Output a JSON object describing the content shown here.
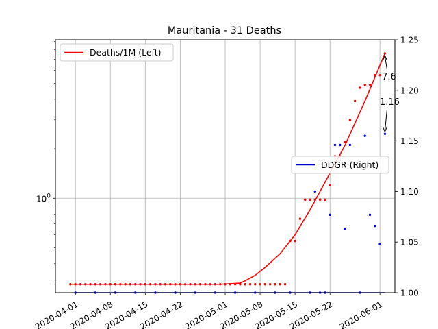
{
  "chart_data": {
    "type": "scatter",
    "title": "Mauritania - 31 Deaths",
    "x_tick_labels": [
      "2020-04-01",
      "2020-04-08",
      "2020-04-15",
      "2020-04-22",
      "2020-05-01",
      "2020-05-08",
      "2020-05-15",
      "2020-05-22",
      "2020-06-01"
    ],
    "x_ticks": [
      "2020-04-01",
      "2020-04-08",
      "2020-04-15",
      "2020-04-22",
      "2020-05-01",
      "2020-05-08",
      "2020-05-15",
      "2020-05-22",
      "2020-06-01"
    ],
    "xlim": [
      "2020-03-28",
      "2020-06-04"
    ],
    "left_axis": {
      "scale": "log",
      "ylim": [
        0.2667,
        9.2
      ],
      "tick_labels": [
        "10^0"
      ],
      "ticks": [
        1
      ]
    },
    "right_axis": {
      "scale": "linear",
      "ylim": [
        1.0,
        1.25
      ],
      "tick_labels": [
        "1.00",
        "1.05",
        "1.10",
        "1.15",
        "1.20",
        "1.25"
      ],
      "ticks": [
        1.0,
        1.05,
        1.1,
        1.15,
        1.2,
        1.25
      ]
    },
    "grid": true,
    "series": [
      {
        "name": "Deaths/1M (Left)",
        "axis": "left",
        "style": "line",
        "color": "#ff0000",
        "x": [
          "2020-03-31",
          "2020-04-30",
          "2020-05-04",
          "2020-05-05",
          "2020-05-07",
          "2020-05-09",
          "2020-05-12",
          "2020-05-15",
          "2020-05-18",
          "2020-05-21",
          "2020-05-25",
          "2020-05-29",
          "2020-06-02"
        ],
        "y": [
          0.3,
          0.3,
          0.305,
          0.315,
          0.34,
          0.38,
          0.46,
          0.6,
          0.85,
          1.25,
          2.1,
          3.9,
          7.6
        ]
      },
      {
        "name": "Deaths/1M points",
        "axis": "left",
        "style": "points",
        "color": "#ff0000",
        "x": [
          "2020-03-31",
          "2020-04-01",
          "2020-04-02",
          "2020-04-03",
          "2020-04-04",
          "2020-04-05",
          "2020-04-06",
          "2020-04-07",
          "2020-04-08",
          "2020-04-09",
          "2020-04-10",
          "2020-04-11",
          "2020-04-12",
          "2020-04-13",
          "2020-04-14",
          "2020-04-15",
          "2020-04-16",
          "2020-04-17",
          "2020-04-18",
          "2020-04-19",
          "2020-04-20",
          "2020-04-21",
          "2020-04-22",
          "2020-04-23",
          "2020-04-24",
          "2020-04-25",
          "2020-04-26",
          "2020-04-27",
          "2020-04-28",
          "2020-04-29",
          "2020-04-30",
          "2020-05-01",
          "2020-05-02",
          "2020-05-03",
          "2020-05-04",
          "2020-05-05",
          "2020-05-06",
          "2020-05-07",
          "2020-05-08",
          "2020-05-09",
          "2020-05-10",
          "2020-05-11",
          "2020-05-12",
          "2020-05-13",
          "2020-05-14",
          "2020-05-15",
          "2020-05-16",
          "2020-05-17",
          "2020-05-18",
          "2020-05-19",
          "2020-05-20",
          "2020-05-21",
          "2020-05-22",
          "2020-05-23",
          "2020-05-24",
          "2020-05-25",
          "2020-05-26",
          "2020-05-27",
          "2020-05-28",
          "2020-05-29",
          "2020-05-30",
          "2020-05-31",
          "2020-06-01",
          "2020-06-02"
        ],
        "y": [
          0.3,
          0.3,
          0.3,
          0.3,
          0.3,
          0.3,
          0.3,
          0.3,
          0.3,
          0.3,
          0.3,
          0.3,
          0.3,
          0.3,
          0.3,
          0.3,
          0.3,
          0.3,
          0.3,
          0.3,
          0.3,
          0.3,
          0.3,
          0.3,
          0.3,
          0.3,
          0.3,
          0.3,
          0.3,
          0.3,
          0.3,
          0.3,
          0.3,
          0.3,
          0.3,
          0.3,
          0.3,
          0.3,
          0.3,
          0.3,
          0.3,
          0.3,
          0.3,
          0.3,
          0.55,
          0.55,
          0.75,
          0.98,
          0.98,
          0.98,
          0.98,
          0.98,
          1.2,
          1.8,
          1.8,
          2.2,
          3.0,
          3.9,
          4.7,
          4.9,
          4.9,
          5.6,
          5.6,
          7.6
        ]
      },
      {
        "name": "DDGR (Right)",
        "axis": "right",
        "style": "line",
        "color": "#0000cc",
        "x": [
          "2020-04-01",
          "2020-06-02"
        ],
        "y": [
          1.0,
          1.0
        ]
      },
      {
        "name": "DDGR points",
        "axis": "right",
        "style": "points",
        "color": "#0000ff",
        "x": [
          "2020-04-01",
          "2020-04-05",
          "2020-04-09",
          "2020-04-13",
          "2020-04-17",
          "2020-04-21",
          "2020-04-25",
          "2020-04-29",
          "2020-05-03",
          "2020-05-07",
          "2020-05-11",
          "2020-05-14",
          "2020-05-18",
          "2020-05-19",
          "2020-05-20",
          "2020-05-21",
          "2020-05-22",
          "2020-05-23",
          "2020-05-24",
          "2020-05-25",
          "2020-05-26",
          "2020-05-28",
          "2020-05-29",
          "2020-05-30",
          "2020-05-31",
          "2020-06-01",
          "2020-06-02"
        ],
        "y": [
          1.0,
          1.0,
          1.0,
          1.0,
          1.0,
          1.0,
          1.0,
          1.0,
          1.0,
          1.0,
          1.0,
          1.0,
          1.0,
          1.1,
          1.0,
          1.0,
          1.077,
          1.146,
          1.146,
          1.063,
          1.146,
          1.0,
          1.155,
          1.077,
          1.066,
          1.048,
          1.157
        ]
      }
    ],
    "legends": [
      {
        "label": "Deaths/1M (Left)",
        "color": "#ff0000",
        "placement": "upper-left"
      },
      {
        "label": "DDGR (Right)",
        "color": "#0000cc",
        "placement": "center-right"
      }
    ],
    "annotations": [
      {
        "text": "7.6",
        "axis": "left",
        "x": "2020-06-02",
        "y": 7.6
      },
      {
        "text": "1.16",
        "axis": "right",
        "x": "2020-06-02",
        "y": 1.157
      }
    ]
  }
}
